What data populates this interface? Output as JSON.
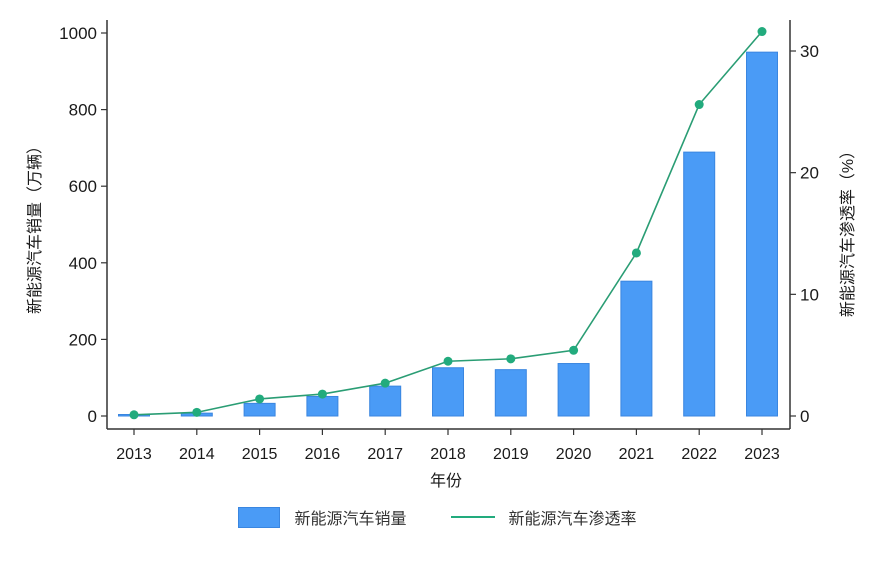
{
  "chart_data": {
    "type": "bar+line",
    "title": "",
    "xlabel": "年份",
    "ylabel_left": "新能源汽车销量（万辆）",
    "ylabel_right": "新能源汽车渗透率（%）",
    "categories": [
      "2013",
      "2014",
      "2015",
      "2016",
      "2017",
      "2018",
      "2019",
      "2020",
      "2021",
      "2022",
      "2023"
    ],
    "series": [
      {
        "name": "新能源汽车销量",
        "type": "bar",
        "axis": "left",
        "color": "#4a9bf6",
        "values": [
          1.8,
          7.5,
          33,
          51,
          78,
          126,
          121,
          137,
          352,
          689,
          950
        ]
      },
      {
        "name": "新能源汽车渗透率",
        "type": "line",
        "axis": "right",
        "color": "#22ab7d",
        "values": [
          0.1,
          0.3,
          1.4,
          1.8,
          2.7,
          4.5,
          4.7,
          5.4,
          13.4,
          25.6,
          31.6
        ]
      }
    ],
    "ylim_left": [
      0,
      1000
    ],
    "yticks_left": [
      0,
      200,
      400,
      600,
      800,
      1000
    ],
    "ylim_right": [
      0,
      30
    ],
    "yticks_right": [
      0,
      10,
      20,
      30
    ],
    "grid": false,
    "legend_position": "bottom"
  },
  "legend": {
    "bar_label": "新能源汽车销量",
    "line_label": "新能源汽车渗透率"
  }
}
